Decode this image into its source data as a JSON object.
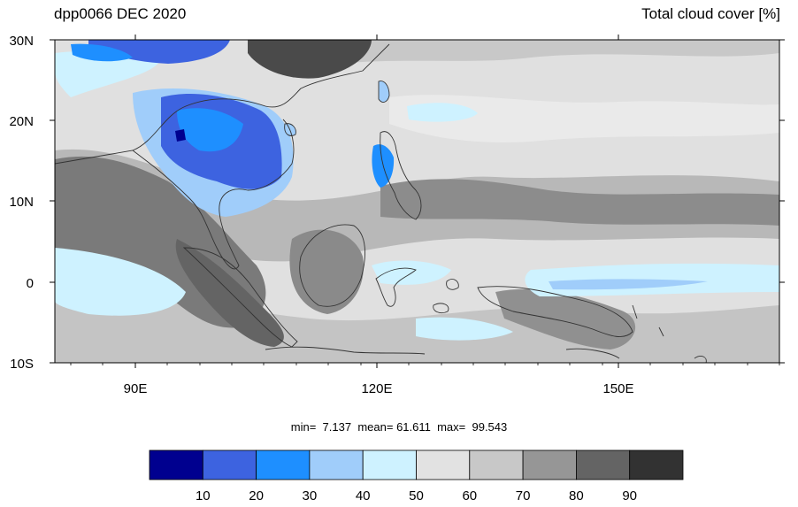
{
  "title_left": "dpp0066 DEC 2020",
  "title_right": "Total cloud cover [%]",
  "lat_labels": [
    "30N",
    "20N",
    "10N",
    "0",
    "10S"
  ],
  "lon_labels": [
    "90E",
    "120E",
    "150E"
  ],
  "stats": {
    "min_label": "min=",
    "min": "7.137",
    "mean_label": "mean=",
    "mean": "61.611",
    "max_label": "max=",
    "max": "99.543"
  },
  "colorbar": {
    "colors": [
      "#00008f",
      "#3d63e0",
      "#1e8fff",
      "#a0cdfa",
      "#cef2ff",
      "#e2e2e2",
      "#c8c8c8",
      "#969696",
      "#646464",
      "#323232"
    ],
    "labels": [
      "10",
      "20",
      "30",
      "40",
      "50",
      "60",
      "70",
      "80",
      "90"
    ]
  }
}
